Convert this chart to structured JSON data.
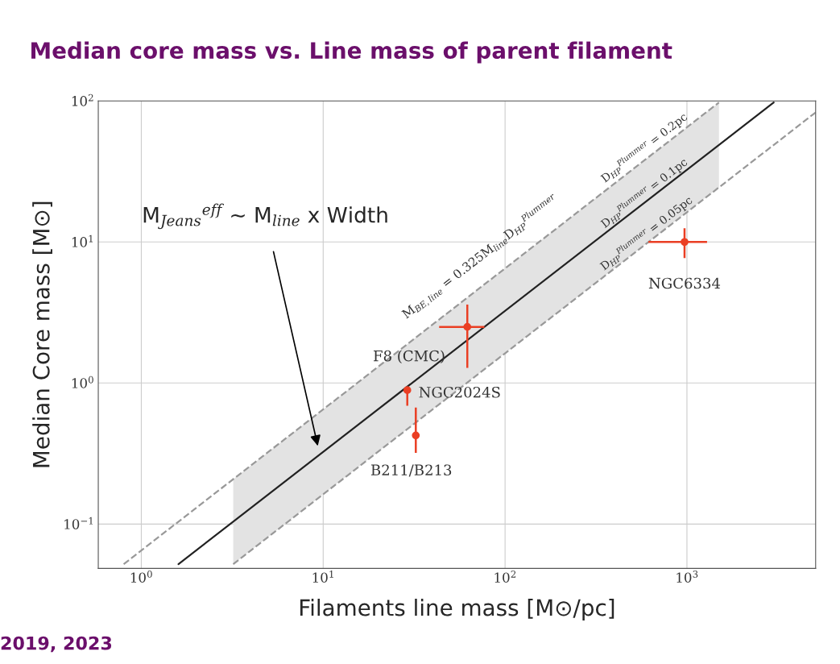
{
  "chart_data": {
    "type": "scatter",
    "title": "Median core mass vs. Line mass of parent filament",
    "xlabel": "Filaments line mass [M⊙/pc]",
    "ylabel": "Median Core mass [M⊙]",
    "log": "xy",
    "grid": true,
    "marker": "circle",
    "xlim": [
      0.58,
      5100
    ],
    "ylim": [
      0.0485,
      100
    ],
    "xticks": [
      {
        "value": 1,
        "label": "10$^{0}$"
      },
      {
        "value": 10,
        "label": "10$^{1}$"
      },
      {
        "value": 100,
        "label": "10$^{2}$"
      },
      {
        "value": 1000,
        "label": "10$^{3}$"
      }
    ],
    "yticks": [
      {
        "value": 0.1,
        "label": "10$^{−1}$"
      },
      {
        "value": 1,
        "label": "10$^{0}$"
      },
      {
        "value": 10,
        "label": "10$^{1}$"
      },
      {
        "value": 100,
        "label": "10$^{2}$"
      }
    ],
    "series": [
      {
        "type": "line",
        "marker": "none",
        "color": "#222222",
        "line_style": "solid",
        "x": [
          1.6,
          3.2,
          1500,
          3000
        ],
        "values": [
          0.052,
          0.104,
          48.75,
          97.5
        ],
        "upper": [
          null,
          0.208,
          97.5,
          null
        ],
        "lower": [
          null,
          0.052,
          24.4,
          null
        ]
      },
      {
        "type": "line",
        "color": "#999999",
        "line_style": "dashed",
        "marker": "none",
        "x": [
          0.8,
          1500
        ],
        "values": [
          0.052,
          97.5
        ]
      },
      {
        "type": "line",
        "color": "#999999",
        "line_style": "dashed",
        "marker": "none",
        "x": [
          3.2,
          5100
        ],
        "values": [
          0.052,
          82.9
        ]
      },
      {
        "color": "#ea3f24",
        "x": [
          970,
          62,
          29,
          32.3
        ],
        "values": [
          10,
          2.5,
          0.89,
          0.425
        ],
        "errors": [
          [
            7.7,
            12.5
          ],
          [
            1.28,
            3.6
          ],
          [
            0.69,
            0.89
          ],
          [
            0.32,
            0.67
          ]
        ],
        "xerrors": [
          [
            614,
            1290
          ],
          [
            43.4,
            77
          ],
          null,
          null
        ]
      }
    ],
    "annotations": [
      {
        "text": "NGC6334",
        "x": 970,
        "y": 10
      },
      {
        "text": "F8 (CMC)",
        "x": 62,
        "y": 2.5
      },
      {
        "text": "NGC2024S",
        "x": 29,
        "y": 0.89
      },
      {
        "text": "B211/B213",
        "x": 32.3,
        "y": 0.425
      },
      "M$_{BE,line}$ = 0.325M$_{line}$D$_{HP}$$^{Plummer}$",
      "D$_{HP}$$^{Plummer}$ = 0.2pc",
      "D$_{HP}$$^{Plummer}$ = 0.1pc",
      "D$_{HP}$$^{Plummer}$ = 0.05pc",
      "M$_{Jeans}$$^{eff}$ ~ M$_{line}$ x Width",
      "2019, 2023"
    ]
  }
}
